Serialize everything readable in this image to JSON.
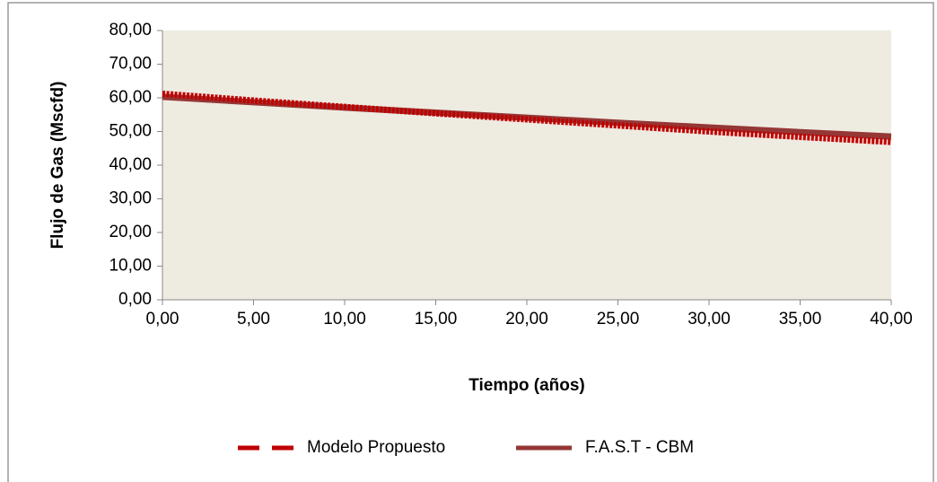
{
  "chart_data": {
    "type": "line",
    "x_label": "Tiempo (años)",
    "y_label": "Flujo de Gas (Mscfd)",
    "x": [
      0,
      5,
      10,
      15,
      20,
      25,
      30,
      35,
      40
    ],
    "series": [
      {
        "name": "Modelo Propuesto",
        "color": "#c00000",
        "dashed": true,
        "values": [
          61.2,
          59.2,
          57.3,
          55.4,
          53.6,
          51.8,
          50.0,
          48.4,
          46.9
        ]
      },
      {
        "name": "F.A.S.T - CBM",
        "color": "#953735",
        "dashed": false,
        "values": [
          60.3,
          58.7,
          57.1,
          55.6,
          54.1,
          52.6,
          51.2,
          49.8,
          48.5
        ]
      }
    ],
    "xlim": [
      0,
      40
    ],
    "xticks": [
      {
        "value": 0,
        "label": "0,00"
      },
      {
        "value": 5,
        "label": "5,00"
      },
      {
        "value": 10,
        "label": "10,00"
      },
      {
        "value": 15,
        "label": "15,00"
      },
      {
        "value": 20,
        "label": "20,00"
      },
      {
        "value": 25,
        "label": "25,00"
      },
      {
        "value": 30,
        "label": "30,00"
      },
      {
        "value": 35,
        "label": "35,00"
      },
      {
        "value": 40,
        "label": "40,00"
      }
    ],
    "ylim": [
      0,
      80
    ],
    "yticks": [
      {
        "value": 0,
        "label": "0,00"
      },
      {
        "value": 10,
        "label": "10,00"
      },
      {
        "value": 20,
        "label": "20,00"
      },
      {
        "value": 30,
        "label": "30,00"
      },
      {
        "value": 40,
        "label": "40,00"
      },
      {
        "value": 50,
        "label": "50,00"
      },
      {
        "value": 60,
        "label": "60,00"
      },
      {
        "value": 70,
        "label": "70,00"
      },
      {
        "value": 80,
        "label": "80,00"
      }
    ],
    "legend": "bottom"
  }
}
